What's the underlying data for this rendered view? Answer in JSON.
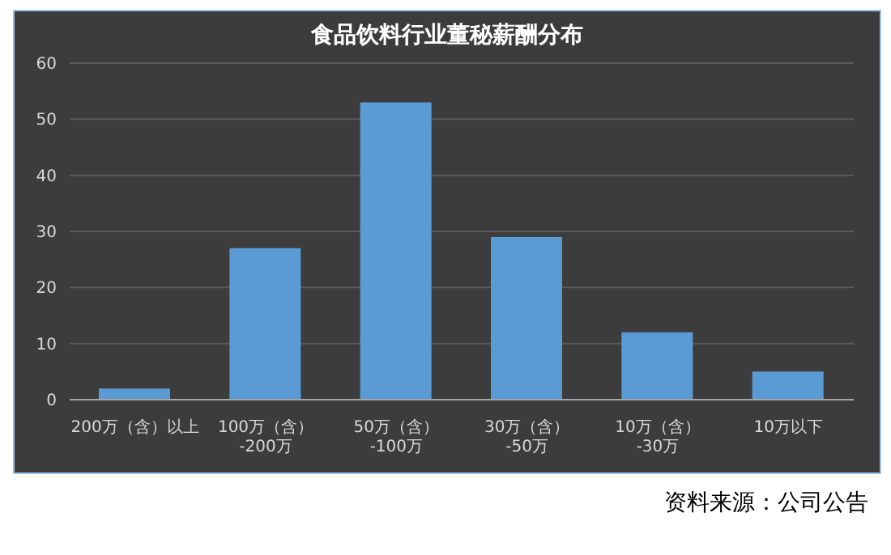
{
  "chart_data": {
    "type": "bar",
    "title": "食品饮料行业董秘薪酬分布",
    "categories": [
      "200万（含）以上",
      "100万（含）-200万",
      "50万（含）-100万",
      "30万（含）-50万",
      "10万（含）-30万",
      "10万以下"
    ],
    "values": [
      2,
      27,
      53,
      29,
      12,
      5
    ],
    "color": "#5b9bd5",
    "ylim": [
      0,
      60
    ],
    "yticks": [
      0,
      10,
      20,
      30,
      40,
      50,
      60
    ],
    "grid": "y",
    "annotations": [
      "资料来源：公司公告"
    ]
  }
}
